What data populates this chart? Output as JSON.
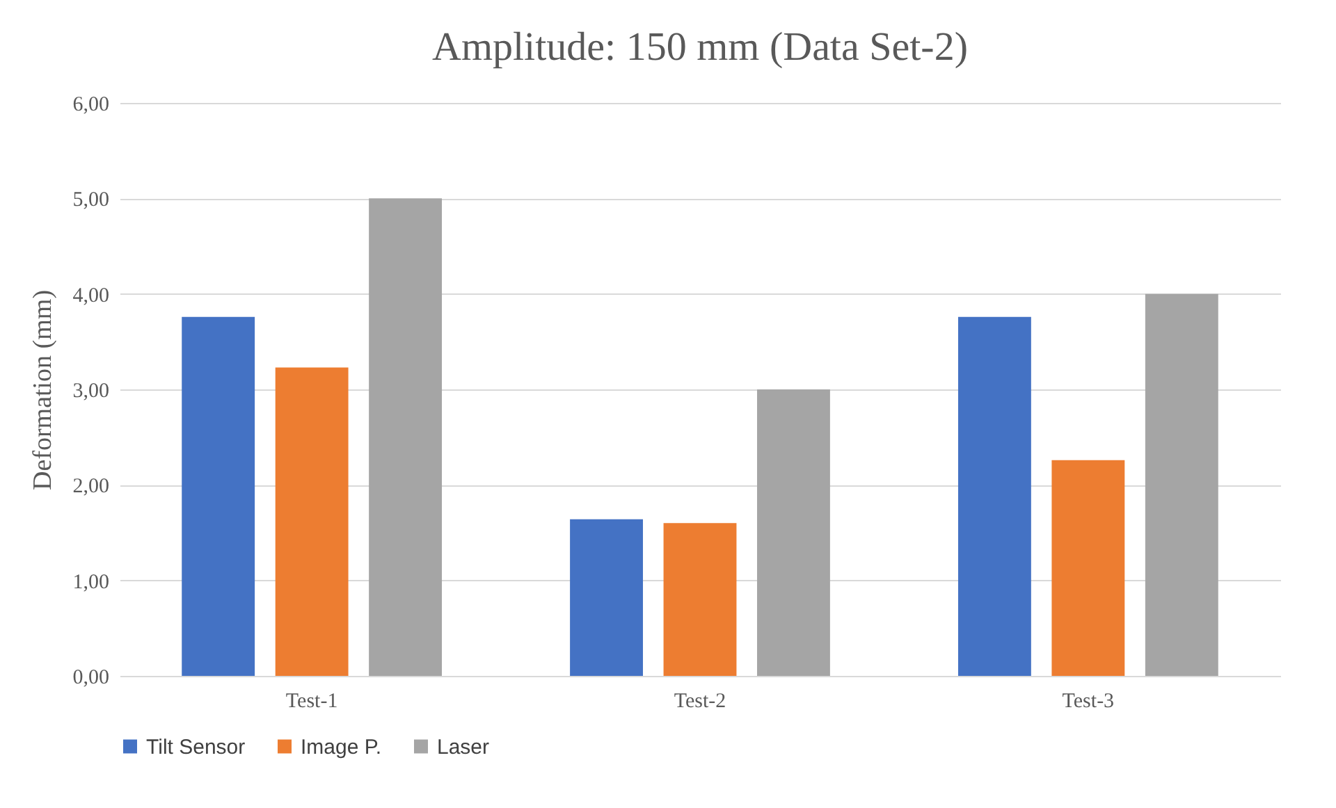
{
  "chart_data": {
    "type": "bar",
    "title": "Amplitude:  150 mm (Data Set-2)",
    "ylabel": "Deformation (mm)",
    "categories": [
      "Test-1",
      "Test-2",
      "Test-3"
    ],
    "series": [
      {
        "name": "Tilt Sensor",
        "color": "#4472c4",
        "values": [
          3.76,
          1.64,
          3.76
        ]
      },
      {
        "name": "Image P.",
        "color": "#ed7d31",
        "values": [
          3.23,
          1.6,
          2.26
        ]
      },
      {
        "name": "Laser",
        "color": "#a5a5a5",
        "values": [
          5.0,
          3.0,
          4.0
        ]
      }
    ],
    "ylim": [
      0,
      6
    ],
    "yticks": [
      {
        "value": 0,
        "label": "0,00"
      },
      {
        "value": 1,
        "label": "1,00"
      },
      {
        "value": 2,
        "label": "2,00"
      },
      {
        "value": 3,
        "label": "3,00"
      },
      {
        "value": 4,
        "label": "4,00"
      },
      {
        "value": 5,
        "label": "5,00"
      },
      {
        "value": 6,
        "label": "6,00"
      }
    ],
    "grid": "y",
    "legend": "bottom"
  }
}
